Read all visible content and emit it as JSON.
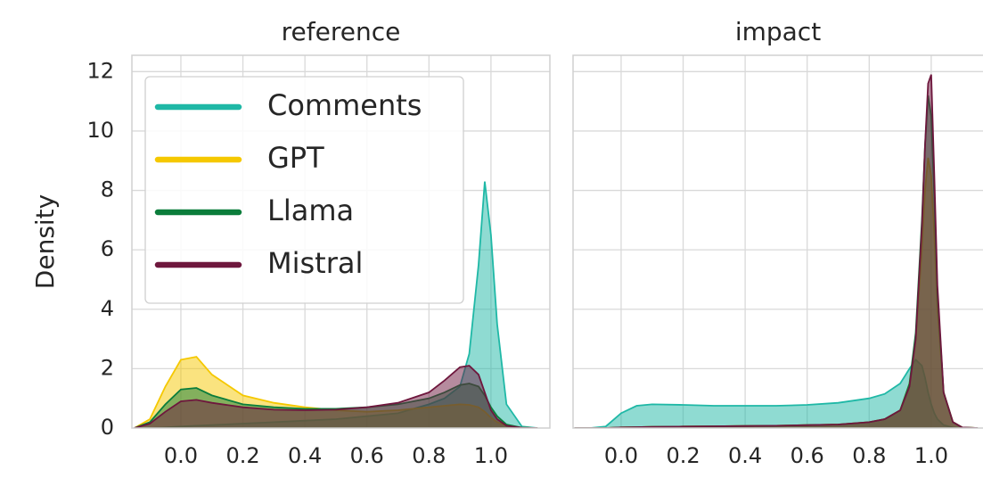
{
  "chart_data": [
    {
      "type": "kde",
      "title": "reference",
      "ylabel": "Density",
      "legend": "upper left",
      "grid": true,
      "xlim": [
        -0.158,
        1.19
      ],
      "ylim": [
        0,
        12.55
      ],
      "xticks": [
        {
          "value": 0,
          "label": "0.0"
        },
        0.2,
        0.4,
        0.6,
        0.8,
        {
          "value": 1,
          "label": "1.0"
        }
      ],
      "yticks": [
        0,
        2,
        4,
        6,
        8,
        10,
        12
      ],
      "x": [
        -0.15,
        -0.1,
        -0.05,
        0,
        0.05,
        0.1,
        0.2,
        0.3,
        0.4,
        0.5,
        0.6,
        0.7,
        0.8,
        0.85,
        0.9,
        0.93,
        0.96,
        0.98,
        1.0,
        1.02,
        1.05,
        1.1,
        1.15
      ],
      "series": [
        {
          "name": "Comments",
          "color": "#1fb8a6",
          "values": [
            0,
            0,
            0.02,
            0.05,
            0.08,
            0.1,
            0.15,
            0.2,
            0.25,
            0.3,
            0.4,
            0.5,
            0.8,
            1.0,
            1.4,
            2.5,
            5.5,
            8.3,
            6.5,
            3.5,
            0.8,
            0.05,
            0
          ]
        },
        {
          "name": "GPT",
          "color": "#f5c800",
          "values": [
            0,
            0.3,
            1.4,
            2.3,
            2.4,
            1.8,
            1.1,
            0.85,
            0.7,
            0.6,
            0.55,
            0.6,
            0.7,
            0.75,
            0.8,
            0.78,
            0.7,
            0.55,
            0.35,
            0.2,
            0.08,
            0.01,
            0
          ]
        },
        {
          "name": "Llama",
          "color": "#0b7d3b",
          "values": [
            0,
            0.2,
            0.8,
            1.3,
            1.35,
            1.1,
            0.8,
            0.7,
            0.65,
            0.65,
            0.7,
            0.8,
            1.0,
            1.2,
            1.45,
            1.5,
            1.4,
            1.1,
            0.7,
            0.4,
            0.12,
            0.01,
            0
          ]
        },
        {
          "name": "Mistral",
          "color": "#6e173d",
          "values": [
            0,
            0.15,
            0.55,
            0.9,
            0.95,
            0.85,
            0.7,
            0.62,
            0.6,
            0.62,
            0.7,
            0.85,
            1.2,
            1.6,
            2.05,
            2.1,
            1.8,
            1.2,
            0.6,
            0.3,
            0.08,
            0.01,
            0
          ]
        }
      ]
    },
    {
      "type": "kde",
      "title": "impact",
      "grid": true,
      "xlim": [
        -0.155,
        1.167
      ],
      "ylim": [
        0,
        12.55
      ],
      "xticks": [
        {
          "value": 0,
          "label": "0.0"
        },
        0.2,
        0.4,
        0.6,
        0.8,
        {
          "value": 1,
          "label": "1.0"
        }
      ],
      "yticks": [
        0,
        2,
        4,
        6,
        8,
        10,
        12
      ],
      "x": [
        -0.15,
        -0.1,
        -0.05,
        0,
        0.05,
        0.1,
        0.2,
        0.3,
        0.4,
        0.5,
        0.6,
        0.7,
        0.8,
        0.85,
        0.9,
        0.93,
        0.95,
        0.97,
        0.98,
        0.99,
        1.0,
        1.01,
        1.02,
        1.04,
        1.07,
        1.1,
        1.15
      ],
      "series": [
        {
          "name": "Comments",
          "color": "#1fb8a6",
          "values": [
            0,
            0,
            0.05,
            0.5,
            0.75,
            0.8,
            0.78,
            0.75,
            0.75,
            0.75,
            0.78,
            0.85,
            1.0,
            1.15,
            1.5,
            2.0,
            2.3,
            2.1,
            1.7,
            1.2,
            0.8,
            0.5,
            0.3,
            0.1,
            0.02,
            0,
            0
          ]
        },
        {
          "name": "GPT",
          "color": "#f5c800",
          "values": [
            0,
            0,
            0,
            0.02,
            0.03,
            0.04,
            0.05,
            0.06,
            0.07,
            0.08,
            0.1,
            0.12,
            0.2,
            0.3,
            0.6,
            1.5,
            3.0,
            6.0,
            8.0,
            9.1,
            8.5,
            6.5,
            4.0,
            1.2,
            0.2,
            0.02,
            0
          ]
        },
        {
          "name": "Llama",
          "color": "#0b7d3b",
          "values": [
            0,
            0,
            0,
            0.02,
            0.03,
            0.04,
            0.05,
            0.06,
            0.07,
            0.08,
            0.1,
            0.12,
            0.2,
            0.3,
            0.6,
            1.5,
            3.2,
            7.0,
            9.5,
            11.2,
            10.5,
            7.8,
            4.5,
            1.2,
            0.2,
            0.02,
            0
          ]
        },
        {
          "name": "Mistral",
          "color": "#6e173d",
          "values": [
            0,
            0,
            0,
            0.02,
            0.03,
            0.04,
            0.05,
            0.06,
            0.07,
            0.08,
            0.1,
            0.12,
            0.2,
            0.3,
            0.6,
            1.4,
            3.0,
            6.8,
            9.5,
            11.6,
            11.9,
            8.5,
            4.8,
            1.2,
            0.2,
            0.02,
            0
          ]
        }
      ]
    }
  ]
}
